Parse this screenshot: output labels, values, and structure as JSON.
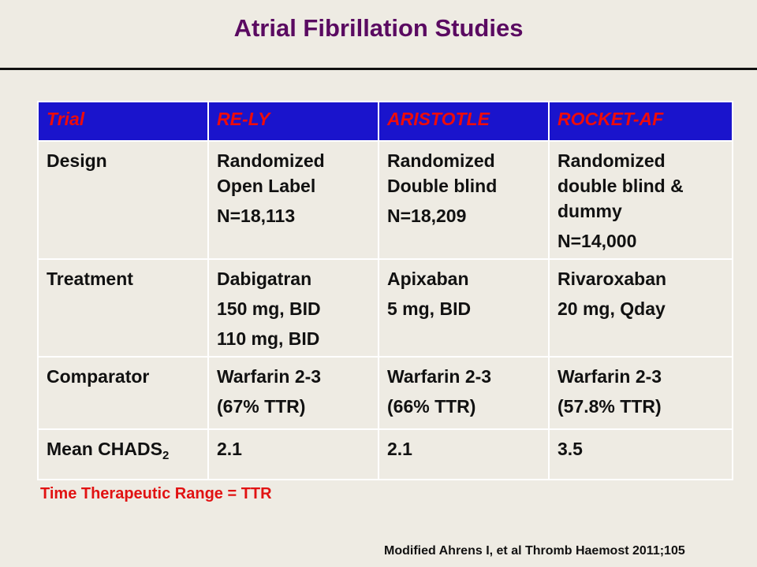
{
  "title": "Atrial Fibrillation Studies",
  "table": {
    "headers": [
      "Trial",
      "RE-LY",
      "ARISTOTLE",
      "ROCKET-AF"
    ],
    "rows": [
      {
        "label": "Design",
        "cells": [
          {
            "lines": [
              "Randomized",
              "Open Label"
            ],
            "n": "N=18,113"
          },
          {
            "lines": [
              "Randomized",
              "Double blind"
            ],
            "n": "N=18,209"
          },
          {
            "lines": [
              "Randomized",
              "double blind &",
              "dummy"
            ],
            "n": "N=14,000"
          }
        ]
      },
      {
        "label": "Treatment",
        "cells": [
          {
            "lines": [
              "Dabigatran",
              "150 mg, BID",
              "110 mg, BID"
            ]
          },
          {
            "lines": [
              "Apixaban",
              "5 mg, BID"
            ]
          },
          {
            "lines": [
              "Rivaroxaban",
              "20 mg, Qday"
            ]
          }
        ]
      },
      {
        "label": "Comparator",
        "cells": [
          {
            "lines": [
              "Warfarin 2-3",
              "(67% TTR)"
            ]
          },
          {
            "lines": [
              "Warfarin 2-3",
              "(66% TTR)"
            ]
          },
          {
            "lines": [
              "Warfarin 2-3",
              "(57.8% TTR)"
            ]
          }
        ]
      },
      {
        "label": "Mean CHADS",
        "label_sub": "2",
        "cells": [
          {
            "lines": [
              "2.1"
            ]
          },
          {
            "lines": [
              "2.1"
            ]
          },
          {
            "lines": [
              "3.5"
            ]
          }
        ]
      }
    ]
  },
  "footnote": "Time Therapeutic Range = TTR",
  "citation": "Modified Ahrens I, et al Thromb Haemost 2011;105"
}
